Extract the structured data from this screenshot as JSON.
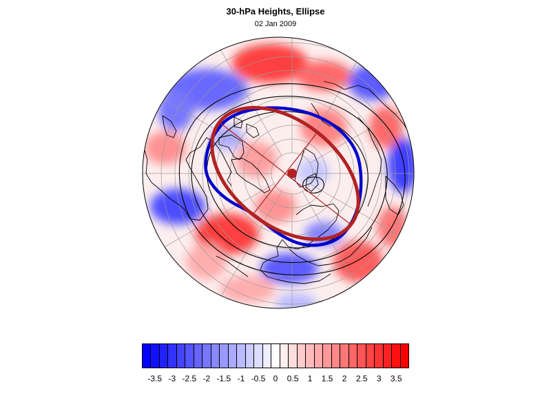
{
  "title": "30-hPa Heights, Ellipse",
  "subtitle": "02 Jan 2009",
  "colors": {
    "low": "#0000ff",
    "mid": "#ffffff",
    "high": "#ff0000",
    "observed_vortex_contour": "#0000cc",
    "fitted_ellipse": "#b22222",
    "ellipse_center": "#b22222",
    "height_contours": "#000000",
    "coastlines": "#000000"
  },
  "map": {
    "projection": "north-polar-stereographic",
    "field": "30-hPa height anomaly",
    "features": [
      "coastlines",
      "latitude-longitude-grid",
      "height-contours",
      "observed-vortex-edge",
      "fitted-ellipse",
      "ellipse-center-marker"
    ]
  },
  "colorbar": {
    "labels": [
      "-3.5",
      "-3",
      "-2.5",
      "-2",
      "-1.5",
      "-1",
      "-0.5",
      "0",
      "0.5",
      "1",
      "1.5",
      "2",
      "2.5",
      "3",
      "3.5"
    ],
    "min": -3.75,
    "max": 3.75,
    "step": 0.25
  }
}
